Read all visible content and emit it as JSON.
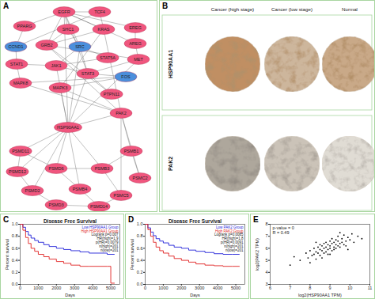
{
  "figure": {
    "A": {
      "panel_label": "A",
      "nodes": [
        {
          "label": "EGFR",
          "color": "#f0567e"
        },
        {
          "label": "TCF4",
          "color": "#f0567e"
        },
        {
          "label": "PPARG",
          "color": "#f0567e"
        },
        {
          "label": "SHC1",
          "color": "#f0567e"
        },
        {
          "label": "KRAS",
          "color": "#f0567e"
        },
        {
          "label": "EREG",
          "color": "#f0567e"
        },
        {
          "label": "CCND1",
          "color": "#4b8fdc"
        },
        {
          "label": "GRB2",
          "color": "#f0567e"
        },
        {
          "label": "SRC",
          "color": "#4b8fdc"
        },
        {
          "label": "AREG",
          "color": "#f0567e"
        },
        {
          "label": "STAT1",
          "color": "#f0567e"
        },
        {
          "label": "JAK1",
          "color": "#f0567e"
        },
        {
          "label": "STAT5A",
          "color": "#f0567e"
        },
        {
          "label": "MET",
          "color": "#f0567e"
        },
        {
          "label": "STAT3",
          "color": "#f0567e"
        },
        {
          "label": "FOS",
          "color": "#4b8fdc"
        },
        {
          "label": "MAPK8",
          "color": "#f0567e"
        },
        {
          "label": "MAPK3",
          "color": "#f0567e"
        },
        {
          "label": "PTPN11",
          "color": "#f0567e"
        },
        {
          "label": "PAK2",
          "color": "#f0567e"
        },
        {
          "label": "HSP90AA1",
          "color": "#f0567e"
        },
        {
          "label": "PSMD11",
          "color": "#f0567e"
        },
        {
          "label": "PSMB1",
          "color": "#f0567e"
        },
        {
          "label": "PSMD12",
          "color": "#f0567e"
        },
        {
          "label": "PSMD6",
          "color": "#f0567e"
        },
        {
          "label": "PSMB3",
          "color": "#f0567e"
        },
        {
          "label": "PSMC2",
          "color": "#f0567e"
        },
        {
          "label": "PSMD2",
          "color": "#f0567e"
        },
        {
          "label": "PSMB4",
          "color": "#f0567e"
        },
        {
          "label": "PSMC5",
          "color": "#f0567e"
        },
        {
          "label": "PSMD3",
          "color": "#f0567e"
        },
        {
          "label": "PSMD14",
          "color": "#f0567e"
        }
      ],
      "edges": [
        [
          "EGFR",
          "TCF4"
        ],
        [
          "EGFR",
          "SHC1"
        ],
        [
          "EGFR",
          "GRB2"
        ],
        [
          "EGFR",
          "EREG"
        ],
        [
          "EGFR",
          "AREG"
        ],
        [
          "EGFR",
          "SRC"
        ],
        [
          "EGFR",
          "STAT3"
        ],
        [
          "EGFR",
          "PPARG"
        ],
        [
          "EGFR",
          "KRAS"
        ],
        [
          "TCF4",
          "CCND1"
        ],
        [
          "TCF4",
          "KRAS"
        ],
        [
          "PPARG",
          "CCND1"
        ],
        [
          "SHC1",
          "GRB2"
        ],
        [
          "SHC1",
          "SRC"
        ],
        [
          "GRB2",
          "KRAS"
        ],
        [
          "GRB2",
          "MET"
        ],
        [
          "KRAS",
          "MAPK3"
        ],
        [
          "EREG",
          "AREG"
        ],
        [
          "AREG",
          "MET"
        ],
        [
          "SRC",
          "STAT3"
        ],
        [
          "SRC",
          "STAT5A"
        ],
        [
          "SRC",
          "JAK1"
        ],
        [
          "JAK1",
          "STAT1"
        ],
        [
          "JAK1",
          "STAT3"
        ],
        [
          "JAK1",
          "STAT5A"
        ],
        [
          "STAT3",
          "FOS"
        ],
        [
          "MAPK8",
          "FOS"
        ],
        [
          "MAPK3",
          "FOS"
        ],
        [
          "MAPK8",
          "STAT1"
        ],
        [
          "CCND1",
          "STAT1"
        ],
        [
          "PTPN11",
          "GRB2"
        ],
        [
          "PTPN11",
          "STAT3"
        ],
        [
          "MET",
          "STAT3"
        ],
        [
          "HSP90AA1",
          "SRC"
        ],
        [
          "HSP90AA1",
          "EGFR"
        ],
        [
          "HSP90AA1",
          "MET"
        ],
        [
          "HSP90AA1",
          "STAT3"
        ],
        [
          "HSP90AA1",
          "JAK1"
        ],
        [
          "HSP90AA1",
          "MAPK3"
        ],
        [
          "HSP90AA1",
          "PAK2"
        ],
        [
          "PAK2",
          "MAPK8"
        ],
        [
          "PAK2",
          "GRB2"
        ],
        [
          "PAK2",
          "MAPK3"
        ],
        [
          "PAK2",
          "KRAS"
        ],
        [
          "HSP90AA1",
          "PSMD11"
        ],
        [
          "HSP90AA1",
          "PSMD12"
        ],
        [
          "HSP90AA1",
          "PSMD6"
        ],
        [
          "HSP90AA1",
          "PSMB3"
        ],
        [
          "HSP90AA1",
          "PSMD2"
        ],
        [
          "HSP90AA1",
          "PSMB4"
        ],
        [
          "PAK2",
          "PSMB1"
        ],
        [
          "PAK2",
          "PSMC2"
        ],
        [
          "PAK2",
          "PSMC5"
        ],
        [
          "PSMD11",
          "PSMD12"
        ],
        [
          "PSMD6",
          "PSMB3"
        ],
        [
          "PSMB1",
          "PSMC2"
        ],
        [
          "PSMD2",
          "PSMD3"
        ],
        [
          "PSMB4",
          "PSMD14"
        ],
        [
          "PSMC5",
          "PSMD14"
        ],
        [
          "PSMD3",
          "PSMD14"
        ],
        [
          "PSMD12",
          "PSMD2"
        ],
        [
          "PSMD6",
          "PSMB4"
        ],
        [
          "PSMB3",
          "PSMC5"
        ],
        [
          "PSMD11",
          "PSMD6"
        ],
        [
          "PSMB1",
          "PSMB3"
        ]
      ]
    },
    "B": {
      "panel_label": "B",
      "columns": [
        "Cancer (high stage)",
        "Cancer (low stage)",
        "Normal"
      ],
      "rows": [
        "HSP90AA1",
        "PAK2"
      ]
    }
  },
  "chart_data": [
    {
      "type": "line",
      "panel_label": "C",
      "title": "Disease Free Survival",
      "x_label": "Days",
      "y_label": "Percent survival",
      "xlim": [
        0,
        5500
      ],
      "xticks": [
        0,
        1000,
        2000,
        3000,
        4000,
        5000
      ],
      "ylim": [
        0,
        1
      ],
      "yticks": [
        {
          "value": 0,
          "label": "0.0"
        },
        {
          "value": 0.2,
          "label": "0.2"
        },
        {
          "value": 0.4,
          "label": "0.4"
        },
        {
          "value": 0.6,
          "label": "0.6"
        },
        {
          "value": 0.8,
          "label": "0.8"
        },
        {
          "value": 1,
          "label": "1.0"
        }
      ],
      "legend": "top-right",
      "line_style": "step",
      "series": [
        {
          "name": "Low HSP90AA1 Group",
          "color": "#2020d8",
          "x": [
            0,
            150,
            300,
            450,
            600,
            800,
            1000,
            1300,
            1600,
            2000,
            2400,
            2800,
            3300,
            3800,
            4300,
            4800,
            5200
          ],
          "values": [
            1,
            0.95,
            0.88,
            0.82,
            0.77,
            0.73,
            0.7,
            0.66,
            0.63,
            0.6,
            0.58,
            0.56,
            0.54,
            0.52,
            0.52,
            0.5,
            0.5
          ]
        },
        {
          "name": "High HSP90AA1 Group",
          "color": "#e02020",
          "x": [
            0,
            150,
            300,
            450,
            600,
            800,
            1000,
            1300,
            1600,
            2000,
            2400,
            2800,
            3300,
            3800,
            4300,
            4800,
            5000,
            5200
          ],
          "values": [
            1,
            0.9,
            0.78,
            0.68,
            0.6,
            0.55,
            0.5,
            0.46,
            0.42,
            0.38,
            0.35,
            0.32,
            0.3,
            0.3,
            0.3,
            0.3,
            0.02,
            0.02
          ]
        }
      ],
      "annotations": [
        "Logrank p=0.007",
        "HR(high)=1.9",
        "p(HR)=0.0079",
        "n(high)=201",
        "n(low)=201"
      ]
    },
    {
      "type": "line",
      "panel_label": "D",
      "title": "Disease Free Survival",
      "x_label": "Days",
      "y_label": "Percent survival",
      "xlim": [
        0,
        5500
      ],
      "xticks": [
        0,
        1000,
        2000,
        3000,
        4000,
        5000
      ],
      "ylim": [
        0,
        1
      ],
      "yticks": [
        {
          "value": 0,
          "label": "0.0"
        },
        {
          "value": 0.2,
          "label": "0.2"
        },
        {
          "value": 0.4,
          "label": "0.4"
        },
        {
          "value": 0.6,
          "label": "0.6"
        },
        {
          "value": 0.8,
          "label": "0.8"
        },
        {
          "value": 1,
          "label": "1.0"
        }
      ],
      "legend": "top-right",
      "line_style": "step",
      "series": [
        {
          "name": "Low PAK2 Group",
          "color": "#2020d8",
          "x": [
            0,
            150,
            300,
            450,
            600,
            800,
            1000,
            1300,
            1600,
            2000,
            2400,
            2800,
            3300,
            3800,
            4300,
            4800,
            5200
          ],
          "values": [
            1,
            0.94,
            0.87,
            0.81,
            0.76,
            0.72,
            0.69,
            0.65,
            0.62,
            0.6,
            0.57,
            0.55,
            0.53,
            0.51,
            0.5,
            0.5,
            0.5
          ]
        },
        {
          "name": "High PAK2 Group",
          "color": "#e02020",
          "x": [
            0,
            150,
            300,
            450,
            600,
            800,
            1000,
            1300,
            1600,
            2000,
            2400,
            2800,
            3300,
            3800,
            4300,
            4800,
            5200
          ],
          "values": [
            1,
            0.91,
            0.8,
            0.7,
            0.62,
            0.56,
            0.52,
            0.47,
            0.43,
            0.4,
            0.37,
            0.34,
            0.32,
            0.31,
            0.3,
            0.3,
            0.3
          ]
        }
      ],
      "annotations": [
        "Logrank p=0.0085",
        "HR(high)=1.8",
        "p(HR)=0.0091",
        "n(high)=201",
        "n(low)=201"
      ]
    },
    {
      "type": "scatter",
      "panel_label": "E",
      "x_label": "log2(HSP90AA1 TPM)",
      "y_label": "log2(PAK2 TPM)",
      "xlim": [
        6,
        11
      ],
      "xticks": [
        6,
        7,
        8,
        9,
        10,
        11
      ],
      "ylim": [
        3,
        8
      ],
      "yticks": [
        3,
        4,
        5,
        6,
        7,
        8
      ],
      "color": "#000000",
      "marker": "circle",
      "annotations": [
        "p-value = 0",
        "R = 0.49"
      ],
      "x": [
        7.2,
        7.5,
        7.8,
        7.9,
        8.0,
        8.1,
        8.2,
        8.2,
        8.3,
        8.3,
        8.4,
        8.4,
        8.5,
        8.5,
        8.5,
        8.6,
        8.6,
        8.7,
        8.7,
        8.7,
        8.8,
        8.8,
        8.8,
        8.9,
        8.9,
        8.9,
        9.0,
        9.0,
        9.0,
        9.1,
        9.1,
        9.1,
        9.2,
        9.2,
        9.2,
        9.3,
        9.3,
        9.3,
        9.4,
        9.4,
        9.4,
        9.5,
        9.5,
        9.6,
        9.6,
        9.7,
        9.7,
        9.8,
        9.8,
        9.9,
        10.0,
        10.1,
        10.2,
        10.4,
        8.0,
        8.6,
        9.0,
        9.5,
        9.9,
        8.3,
        7.0,
        10.6
      ],
      "values": [
        5.3,
        5.0,
        5.6,
        5.2,
        5.8,
        5.4,
        6.0,
        5.5,
        5.7,
        5.1,
        6.1,
        5.6,
        5.9,
        5.4,
        6.3,
        5.8,
        6.2,
        5.6,
        6.0,
        6.4,
        5.7,
        6.1,
        6.5,
        5.9,
        6.3,
        5.5,
        6.0,
        6.6,
        6.2,
        5.8,
        6.4,
        6.8,
        6.1,
        6.5,
        5.9,
        6.3,
        6.7,
        6.0,
        6.2,
        6.6,
        7.0,
        6.4,
        6.1,
        6.5,
        6.8,
        6.3,
        7.1,
        6.6,
        6.2,
        6.9,
        6.7,
        7.2,
        6.5,
        7.0,
        4.8,
        5.2,
        5.5,
        7.3,
        5.9,
        6.5,
        4.6,
        6.8
      ]
    }
  ]
}
